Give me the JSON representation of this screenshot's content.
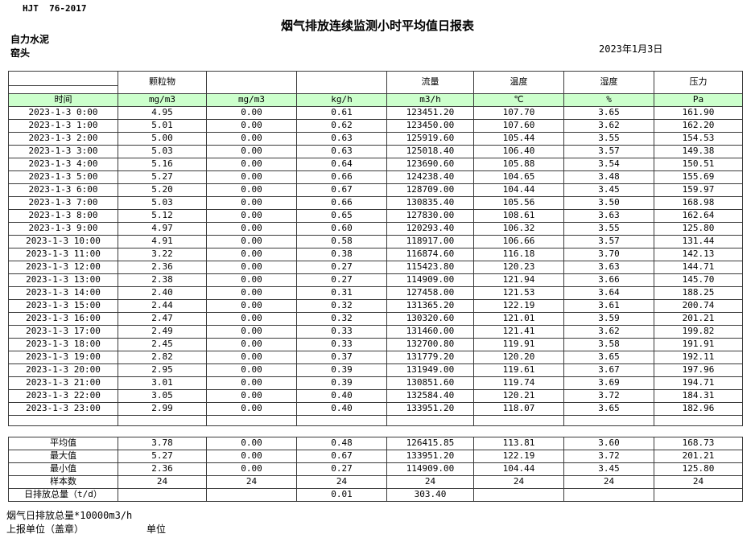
{
  "header": {
    "standard": "HJT  76-2017",
    "title": "烟气排放连续监测小时平均值日报表",
    "company": "自力水泥",
    "monitoring_point": "窑头",
    "date": "2023年1月3日"
  },
  "colors": {
    "unit_row_green": "#ccffcc",
    "border": "#3a3a3a"
  },
  "table": {
    "pollutant_headers": [
      "",
      "颗粒物",
      "",
      "",
      "流量",
      "温度",
      "湿度",
      "压力"
    ],
    "unit_row": [
      "时间",
      "mg/m3",
      "mg/m3",
      "kg/h",
      "m3/h",
      "℃",
      "%",
      "Pa"
    ],
    "rows": [
      [
        "2023-1-3 0:00",
        "4.95",
        "0.00",
        "0.61",
        "123451.20",
        "107.70",
        "3.65",
        "161.90"
      ],
      [
        "2023-1-3 1:00",
        "5.01",
        "0.00",
        "0.62",
        "123450.00",
        "107.60",
        "3.62",
        "162.20"
      ],
      [
        "2023-1-3 2:00",
        "5.00",
        "0.00",
        "0.63",
        "125919.60",
        "105.44",
        "3.55",
        "154.53"
      ],
      [
        "2023-1-3 3:00",
        "5.03",
        "0.00",
        "0.63",
        "125018.40",
        "106.40",
        "3.57",
        "149.38"
      ],
      [
        "2023-1-3 4:00",
        "5.16",
        "0.00",
        "0.64",
        "123690.60",
        "105.88",
        "3.54",
        "150.51"
      ],
      [
        "2023-1-3 5:00",
        "5.27",
        "0.00",
        "0.66",
        "124238.40",
        "104.65",
        "3.48",
        "155.69"
      ],
      [
        "2023-1-3 6:00",
        "5.20",
        "0.00",
        "0.67",
        "128709.00",
        "104.44",
        "3.45",
        "159.97"
      ],
      [
        "2023-1-3 7:00",
        "5.03",
        "0.00",
        "0.66",
        "130835.40",
        "105.56",
        "3.50",
        "168.98"
      ],
      [
        "2023-1-3 8:00",
        "5.12",
        "0.00",
        "0.65",
        "127830.00",
        "108.61",
        "3.63",
        "162.64"
      ],
      [
        "2023-1-3 9:00",
        "4.97",
        "0.00",
        "0.60",
        "120293.40",
        "106.32",
        "3.55",
        "125.80"
      ],
      [
        "2023-1-3 10:00",
        "4.91",
        "0.00",
        "0.58",
        "118917.00",
        "106.66",
        "3.57",
        "131.44"
      ],
      [
        "2023-1-3 11:00",
        "3.22",
        "0.00",
        "0.38",
        "116874.60",
        "116.18",
        "3.70",
        "142.13"
      ],
      [
        "2023-1-3 12:00",
        "2.36",
        "0.00",
        "0.27",
        "115423.80",
        "120.23",
        "3.63",
        "144.71"
      ],
      [
        "2023-1-3 13:00",
        "2.38",
        "0.00",
        "0.27",
        "114909.00",
        "121.94",
        "3.66",
        "145.70"
      ],
      [
        "2023-1-3 14:00",
        "2.40",
        "0.00",
        "0.31",
        "127458.00",
        "121.53",
        "3.64",
        "188.25"
      ],
      [
        "2023-1-3 15:00",
        "2.44",
        "0.00",
        "0.32",
        "131365.20",
        "122.19",
        "3.61",
        "200.74"
      ],
      [
        "2023-1-3 16:00",
        "2.47",
        "0.00",
        "0.32",
        "130320.60",
        "121.01",
        "3.59",
        "201.21"
      ],
      [
        "2023-1-3 17:00",
        "2.49",
        "0.00",
        "0.33",
        "131460.00",
        "121.41",
        "3.62",
        "199.82"
      ],
      [
        "2023-1-3 18:00",
        "2.45",
        "0.00",
        "0.33",
        "132700.80",
        "119.91",
        "3.58",
        "191.91"
      ],
      [
        "2023-1-3 19:00",
        "2.82",
        "0.00",
        "0.37",
        "131779.20",
        "120.20",
        "3.65",
        "192.11"
      ],
      [
        "2023-1-3 20:00",
        "2.95",
        "0.00",
        "0.39",
        "131949.00",
        "119.61",
        "3.67",
        "197.96"
      ],
      [
        "2023-1-3 21:00",
        "3.01",
        "0.00",
        "0.39",
        "130851.60",
        "119.74",
        "3.69",
        "194.71"
      ],
      [
        "2023-1-3 22:00",
        "3.05",
        "0.00",
        "0.40",
        "132584.40",
        "120.21",
        "3.72",
        "184.31"
      ],
      [
        "2023-1-3 23:00",
        "2.99",
        "0.00",
        "0.40",
        "133951.20",
        "118.07",
        "3.65",
        "182.96"
      ]
    ],
    "summary_rows": [
      [
        "平均值",
        "3.78",
        "0.00",
        "0.48",
        "126415.85",
        "113.81",
        "3.60",
        "168.73"
      ],
      [
        "最大值",
        "5.27",
        "0.00",
        "0.67",
        "133951.20",
        "122.19",
        "3.72",
        "201.21"
      ],
      [
        "最小值",
        "2.36",
        "0.00",
        "0.27",
        "114909.00",
        "104.44",
        "3.45",
        "125.80"
      ],
      [
        "样本数",
        "24",
        "24",
        "24",
        "24",
        "24",
        "24",
        "24"
      ],
      [
        "日排放总量（t/d）",
        "",
        "",
        "0.01",
        "303.40",
        "",
        "",
        ""
      ]
    ]
  },
  "footer": {
    "note": "烟气日排放总量*10000m3/h",
    "stamp_label": "上报单位（盖章）",
    "unit_label": "单位"
  }
}
